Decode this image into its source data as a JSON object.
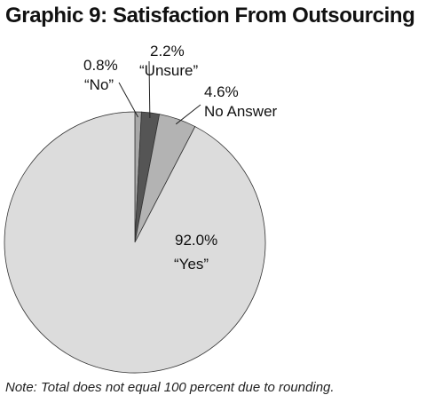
{
  "chart_data": {
    "type": "pie",
    "title": "Graphic 9: Satisfaction From Outsourcing",
    "note": "Note: Total does not equal 100 percent due to rounding.",
    "slices": [
      {
        "label": "“No”",
        "value": 0.8,
        "value_label": "0.8%",
        "color": "#a8a8a8"
      },
      {
        "label": "“Unsure”",
        "value": 2.2,
        "value_label": "2.2%",
        "color": "#555555"
      },
      {
        "label": "No Answer",
        "value": 4.6,
        "value_label": "4.6%",
        "color": "#b3b3b3"
      },
      {
        "label": "“Yes”",
        "value": 92.0,
        "value_label": "92.0%",
        "color": "#dcdcdc"
      }
    ],
    "start_angle_deg": 0,
    "direction": "clockwise"
  }
}
